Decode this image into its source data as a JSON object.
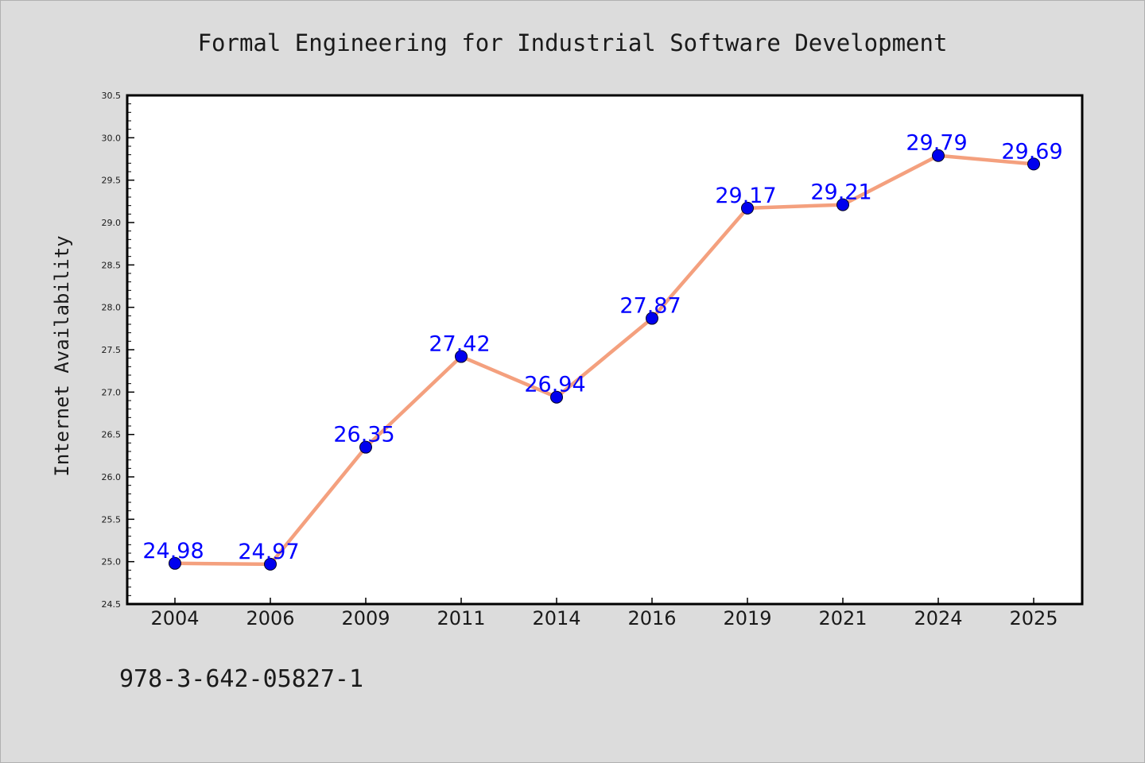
{
  "chart_data": {
    "type": "line",
    "title": "Formal Engineering for Industrial Software Development",
    "xlabel": "",
    "ylabel": "Internet Availability",
    "categories": [
      "2004",
      "2006",
      "2009",
      "2011",
      "2014",
      "2016",
      "2019",
      "2021",
      "2024",
      "2025"
    ],
    "values": [
      24.98,
      24.97,
      26.35,
      27.42,
      26.94,
      27.87,
      29.17,
      29.21,
      29.79,
      29.69
    ],
    "data_labels": [
      "24.98",
      "24.97",
      "26.35",
      "27.42",
      "26.94",
      "27.87",
      "29.17",
      "29.21",
      "29.79",
      "29.69"
    ],
    "ylim": [
      24.5,
      30.5
    ],
    "yticks": [
      24.5,
      25.0,
      25.5,
      26.0,
      26.5,
      27.0,
      27.5,
      28.0,
      28.5,
      29.0,
      29.5,
      30.0,
      30.5
    ],
    "ytick_labels": [
      "24.5",
      "25.0",
      "25.5",
      "26.0",
      "26.5",
      "27.0",
      "27.5",
      "28.0",
      "28.5",
      "29.0",
      "29.5",
      "30.0",
      "30.5"
    ],
    "grid": false,
    "legend": "none",
    "colors": {
      "background": "#dcdcdc",
      "plot_background": "#ffffff",
      "line": "#f4a07e",
      "marker": "#0000ee",
      "label": "#0000ff",
      "text": "#1a1a1a"
    }
  },
  "annotation": "978-3-642-05827-1"
}
